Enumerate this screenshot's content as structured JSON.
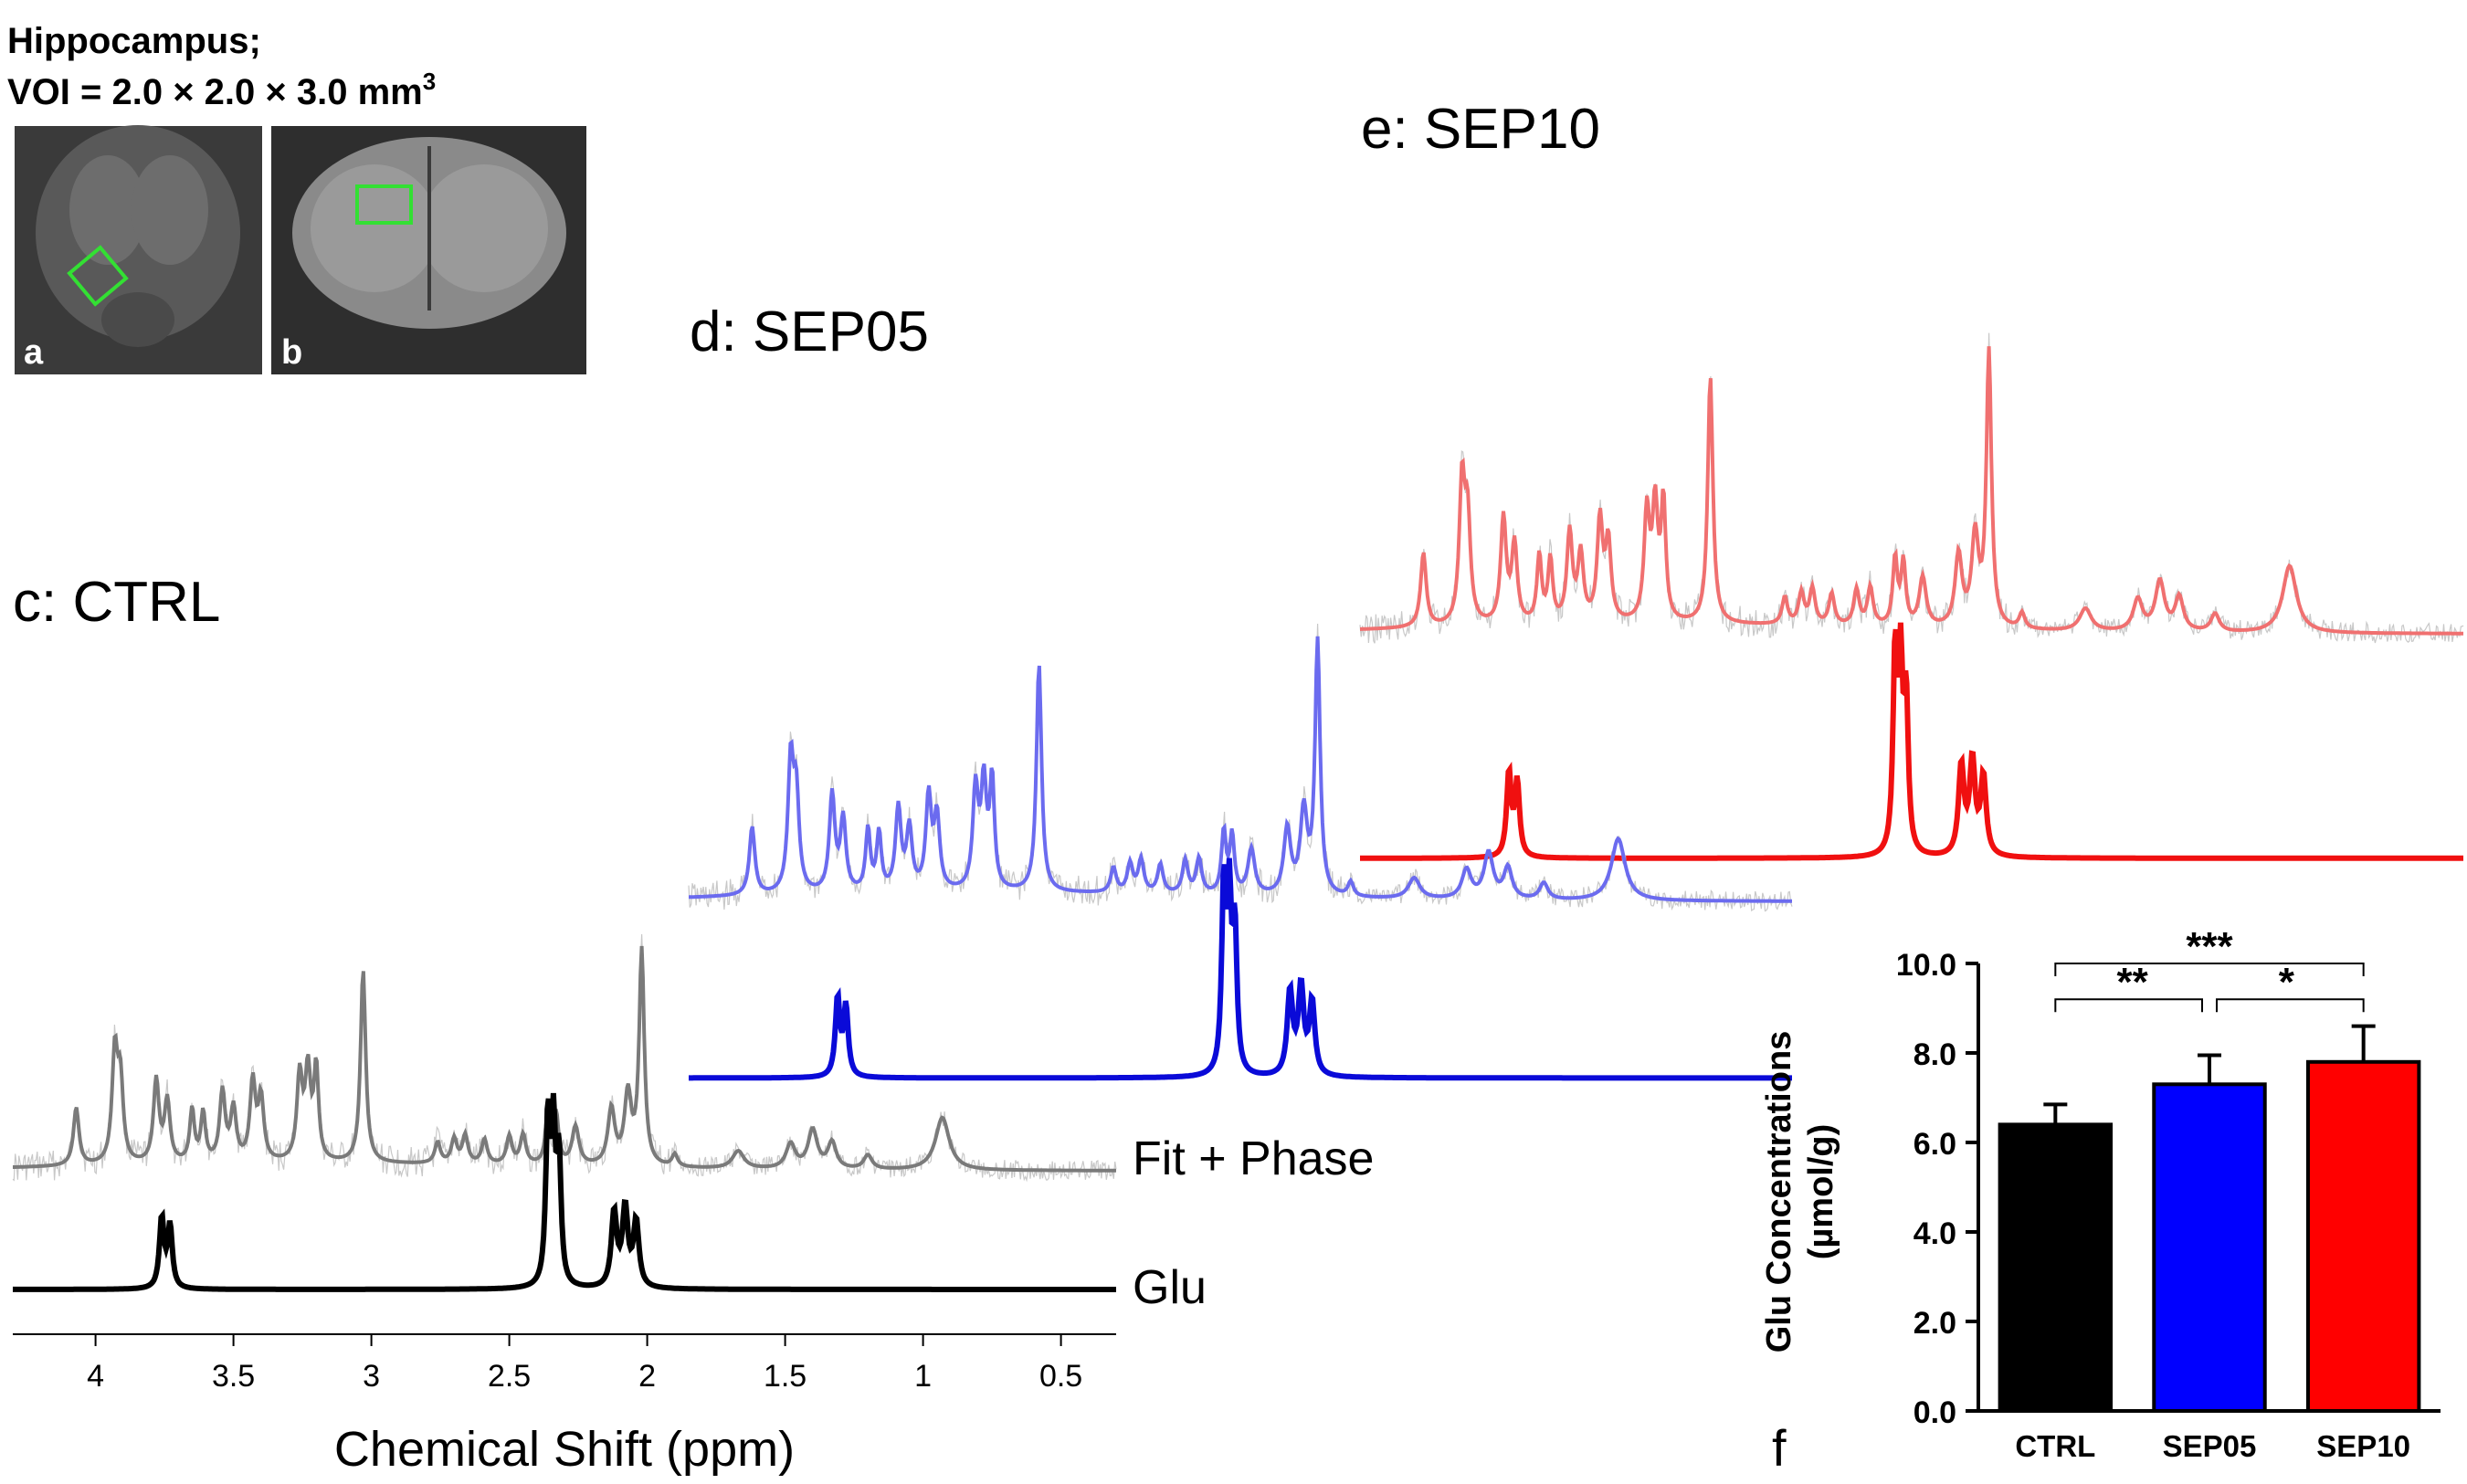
{
  "header": {
    "title_line1": "Hippocampus;",
    "title_line2": "VOI = 2.0 × 2.0 × 3.0 mm",
    "title_sup": "3"
  },
  "mri": {
    "label_a": "a",
    "label_b": "b",
    "voi_color": "#33e033"
  },
  "spectra": {
    "ctrl": {
      "label": "c: CTRL",
      "fit_color": "#7a7a7a",
      "glu_color": "#000000"
    },
    "sep05": {
      "label": "d: SEP05",
      "fit_color": "#6b6bef",
      "glu_color": "#0a0ad8"
    },
    "sep10": {
      "label": "e: SEP10",
      "fit_color": "#f07070",
      "glu_color": "#f01010"
    },
    "fit_label": "Fit + Phase",
    "glu_label": "Glu",
    "xaxis": {
      "title": "Chemical Shift (ppm)",
      "ticks": [
        "4",
        "3.5",
        "3",
        "2.5",
        "2",
        "1.5",
        "1",
        "0.5"
      ],
      "range": [
        4.3,
        0.3
      ]
    },
    "peaks": [
      {
        "ppm": 4.07,
        "h": 0.33,
        "w": 0.012
      },
      {
        "ppm": 3.93,
        "h": 0.62,
        "w": 0.012
      },
      {
        "ppm": 3.91,
        "h": 0.45,
        "w": 0.012
      },
      {
        "ppm": 3.78,
        "h": 0.47,
        "w": 0.012
      },
      {
        "ppm": 3.74,
        "h": 0.35,
        "w": 0.012
      },
      {
        "ppm": 3.65,
        "h": 0.3,
        "w": 0.01
      },
      {
        "ppm": 3.61,
        "h": 0.28,
        "w": 0.01
      },
      {
        "ppm": 3.54,
        "h": 0.4,
        "w": 0.012
      },
      {
        "ppm": 3.5,
        "h": 0.3,
        "w": 0.012
      },
      {
        "ppm": 3.43,
        "h": 0.45,
        "w": 0.012
      },
      {
        "ppm": 3.4,
        "h": 0.35,
        "w": 0.012
      },
      {
        "ppm": 3.26,
        "h": 0.48,
        "w": 0.012
      },
      {
        "ppm": 3.23,
        "h": 0.5,
        "w": 0.012
      },
      {
        "ppm": 3.2,
        "h": 0.52,
        "w": 0.01
      },
      {
        "ppm": 3.03,
        "h": 1.1,
        "w": 0.011
      },
      {
        "ppm": 2.76,
        "h": 0.12,
        "w": 0.012
      },
      {
        "ppm": 2.7,
        "h": 0.14,
        "w": 0.012
      },
      {
        "ppm": 2.66,
        "h": 0.16,
        "w": 0.012
      },
      {
        "ppm": 2.59,
        "h": 0.14,
        "w": 0.012
      },
      {
        "ppm": 2.5,
        "h": 0.16,
        "w": 0.012
      },
      {
        "ppm": 2.45,
        "h": 0.17,
        "w": 0.012
      },
      {
        "ppm": 2.36,
        "h": 0.3,
        "w": 0.01
      },
      {
        "ppm": 2.33,
        "h": 0.28,
        "w": 0.01
      },
      {
        "ppm": 2.26,
        "h": 0.22,
        "w": 0.015
      },
      {
        "ppm": 2.13,
        "h": 0.32,
        "w": 0.015
      },
      {
        "ppm": 2.07,
        "h": 0.4,
        "w": 0.015
      },
      {
        "ppm": 2.02,
        "h": 1.22,
        "w": 0.011
      },
      {
        "ppm": 1.9,
        "h": 0.07,
        "w": 0.012
      },
      {
        "ppm": 1.67,
        "h": 0.1,
        "w": 0.025
      },
      {
        "ppm": 1.48,
        "h": 0.14,
        "w": 0.02
      },
      {
        "ppm": 1.4,
        "h": 0.22,
        "w": 0.02
      },
      {
        "ppm": 1.33,
        "h": 0.15,
        "w": 0.018
      },
      {
        "ppm": 1.2,
        "h": 0.08,
        "w": 0.018
      },
      {
        "ppm": 0.93,
        "h": 0.3,
        "w": 0.03
      }
    ],
    "glu_peaks": [
      {
        "ppm": 3.76,
        "h": 0.45,
        "w": 0.01
      },
      {
        "ppm": 3.73,
        "h": 0.4,
        "w": 0.01
      },
      {
        "ppm": 2.36,
        "h": 1.05,
        "w": 0.009
      },
      {
        "ppm": 2.34,
        "h": 0.95,
        "w": 0.009
      },
      {
        "ppm": 2.32,
        "h": 0.8,
        "w": 0.009
      },
      {
        "ppm": 2.12,
        "h": 0.48,
        "w": 0.012
      },
      {
        "ppm": 2.08,
        "h": 0.5,
        "w": 0.012
      },
      {
        "ppm": 2.04,
        "h": 0.42,
        "w": 0.012
      }
    ]
  },
  "chart_data": {
    "type": "bar",
    "panel_label": "f",
    "categories": [
      "CTRL",
      "SEP05",
      "SEP10"
    ],
    "values": [
      6.4,
      7.3,
      7.8
    ],
    "errors": [
      0.45,
      0.65,
      0.8
    ],
    "colors": [
      "#000000",
      "#0000ff",
      "#ff0000"
    ],
    "ylabel_line1": "Glu Concentrations",
    "ylabel_line2": "(µmol/g)",
    "ylim": [
      0,
      10
    ],
    "yticks": [
      "0.0",
      "2.0",
      "4.0",
      "6.0",
      "8.0",
      "10.0"
    ],
    "ytick_values": [
      0,
      2,
      4,
      6,
      8,
      10
    ],
    "significance": [
      {
        "from": 0,
        "to": 1,
        "label": "**"
      },
      {
        "from": 1,
        "to": 2,
        "label": "*"
      },
      {
        "from": 0,
        "to": 2,
        "label": "***"
      }
    ]
  }
}
